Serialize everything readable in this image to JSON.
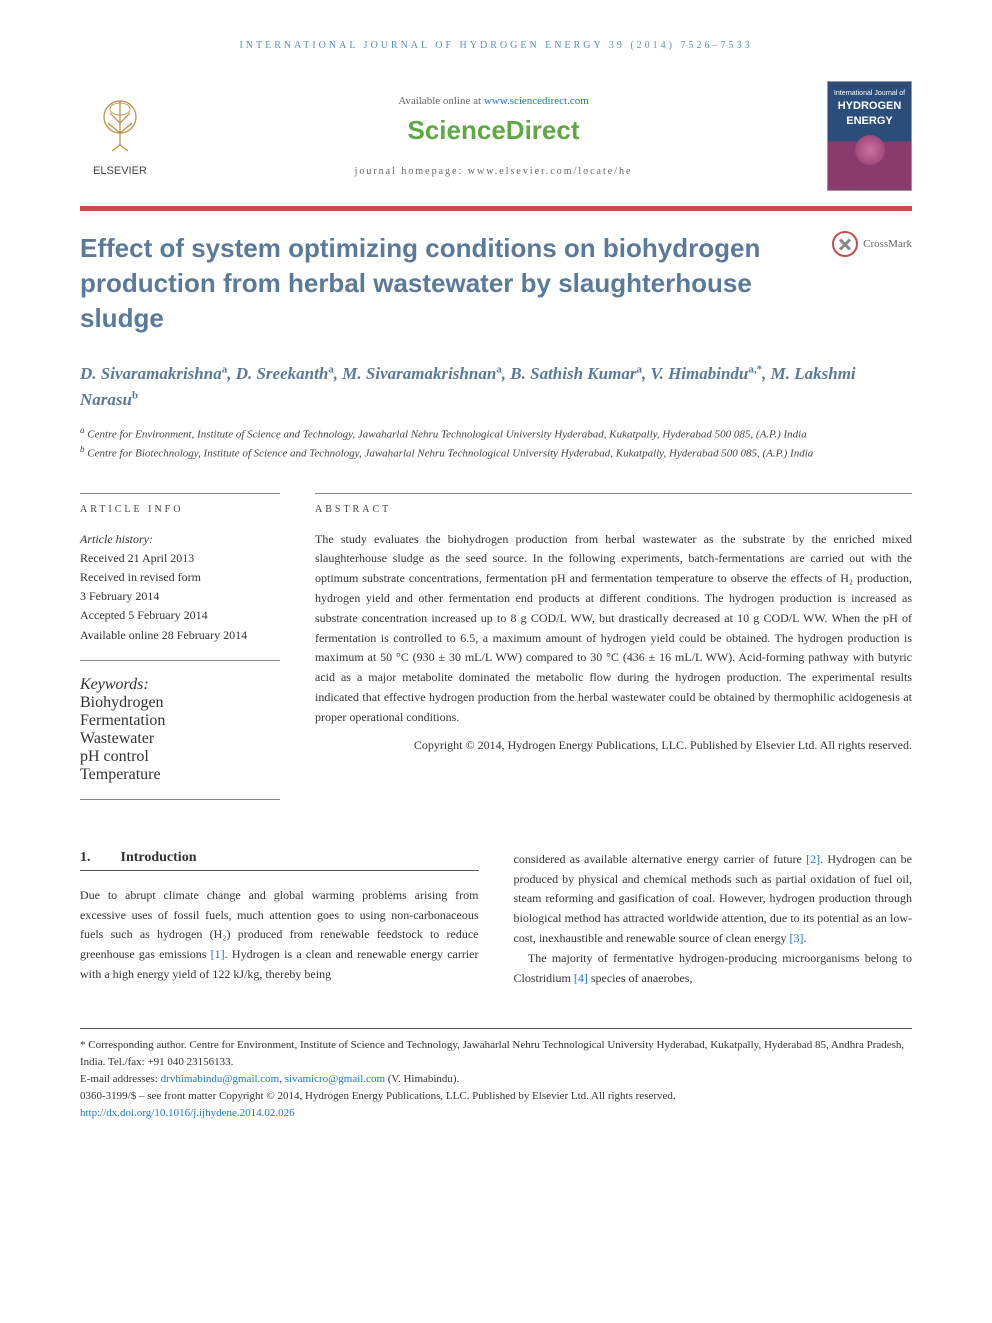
{
  "running_header": "INTERNATIONAL JOURNAL OF HYDROGEN ENERGY 39 (2014) 7526–7533",
  "top": {
    "elsevier": "ELSEVIER",
    "available": "Available online at ",
    "available_link": "www.sciencedirect.com",
    "sciencedirect": "ScienceDirect",
    "homepage_label": "journal homepage: ",
    "homepage_url": "www.elsevier.com/locate/he",
    "cover_small": "International Journal of",
    "cover_main1": "HYDROGEN",
    "cover_main2": "ENERGY"
  },
  "crossmark": "CrossMark",
  "title": "Effect of system optimizing conditions on biohydrogen production from herbal wastewater by slaughterhouse sludge",
  "authors_html": "D. Sivaramakrishna<sup>a</sup>, D. Sreekanth<sup>a</sup>, M. Sivaramakrishnan<sup>a</sup>, B. Sathish Kumar<sup>a</sup>, V. Himabindu<sup>a,*</sup>, M. Lakshmi Narasu<sup>b</sup>",
  "affiliations": {
    "a": "Centre for Environment, Institute of Science and Technology, Jawaharlal Nehru Technological University Hyderabad, Kukatpally, Hyderabad 500 085, (A.P.) India",
    "b": "Centre for Biotechnology, Institute of Science and Technology, Jawaharlal Nehru Technological University Hyderabad, Kukatpally, Hyderabad 500 085, (A.P.) India"
  },
  "info": {
    "label": "ARTICLE INFO",
    "history_head": "Article history:",
    "received": "Received 21 April 2013",
    "revised1": "Received in revised form",
    "revised2": "3 February 2014",
    "accepted": "Accepted 5 February 2014",
    "online": "Available online 28 February 2014",
    "keywords_head": "Keywords:",
    "kw": [
      "Biohydrogen",
      "Fermentation",
      "Wastewater",
      "pH control",
      "Temperature"
    ]
  },
  "abstract": {
    "label": "ABSTRACT",
    "text": "The study evaluates the biohydrogen production from herbal wastewater as the substrate by the enriched mixed slaughterhouse sludge as the seed source. In the following experiments, batch-fermentations are carried out with the optimum substrate concentrations, fermentation pH and fermentation temperature to observe the effects of H₂ production, hydrogen yield and other fermentation end products at different conditions. The hydrogen production is increased as substrate concentration increased up to 8 g COD/L WW, but drastically decreased at 10 g COD/L WW. When the pH of fermentation is controlled to 6.5, a maximum amount of hydrogen yield could be obtained. The hydrogen production is maximum at 50 °C (930 ± 30 mL/L WW) compared to 30 °C (436 ± 16 mL/L WW). Acid-forming pathway with butyric acid as a major metabolite dominated the metabolic flow during the hydrogen production. The experimental results indicated that effective hydrogen production from the herbal wastewater could be obtained by thermophilic acidogenesis at proper operational conditions.",
    "copyright": "Copyright © 2014, Hydrogen Energy Publications, LLC. Published by Elsevier Ltd. All rights reserved."
  },
  "section1": {
    "num": "1.",
    "title": "Introduction",
    "col1": "Due to abrupt climate change and global warming problems arising from excessive uses of fossil fuels, much attention goes to using non-carbonaceous fuels such as hydrogen (H₂) produced from renewable feedstock to reduce greenhouse gas emissions [1]. Hydrogen is a clean and renewable energy carrier with a high energy yield of 122 kJ/kg, thereby being",
    "col2a": "considered as available alternative energy carrier of future [2]. Hydrogen can be produced by physical and chemical methods such as partial oxidation of fuel oil, steam reforming and gasification of coal. However, hydrogen production through biological method has attracted worldwide attention, due to its potential as an low-cost, inexhaustible and renewable source of clean energy [3].",
    "col2b": "The majority of fermentative hydrogen-producing microorganisms belong to Clostridium [4] species of anaerobes,"
  },
  "footer": {
    "corresponding": "* Corresponding author. Centre for Environment, Institute of Science and Technology, Jawaharlal Nehru Technological University Hyderabad, Kukatpally, Hyderabad 85, Andhra Pradesh, India. Tel./fax: +91 040 23156133.",
    "email_label": "E-mail addresses: ",
    "email1": "drvhimabindu@gmail.com",
    "email2": "sivamicro@gmail.com",
    "email_suffix": " (V. Himabindu).",
    "issn": "0360-3199/$ – see front matter Copyright © 2014, Hydrogen Energy Publications, LLC. Published by Elsevier Ltd. All rights reserved.",
    "doi": "http://dx.doi.org/10.1016/j.ijhydene.2014.02.026"
  },
  "colors": {
    "heading": "#5b7a99",
    "red_bar": "#c94c4c",
    "link": "#1a73e8",
    "sd_green": "#5fa843"
  }
}
